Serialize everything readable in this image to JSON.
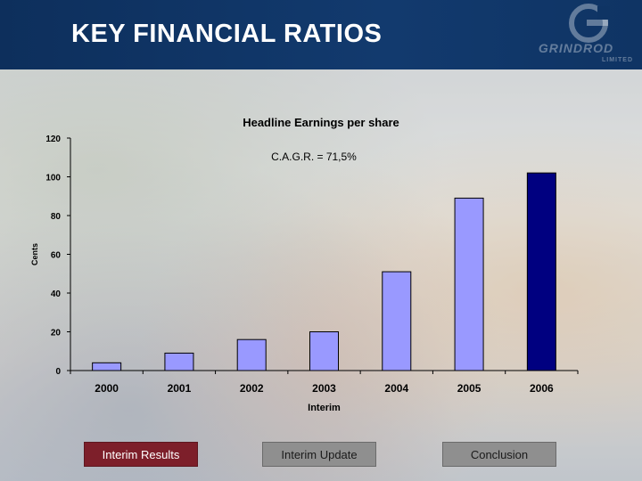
{
  "header": {
    "title": "KEY FINANCIAL RATIOS"
  },
  "logo": {
    "name": "GRINDROD",
    "sub": "LIMITED"
  },
  "chart_data": {
    "type": "bar",
    "title": "Headline Earnings per share",
    "annotation": "C.A.G.R.  = 71,5%",
    "ylabel": "Cents",
    "xlabel": "",
    "categories": [
      "2000",
      "2001",
      "2002",
      "2003",
      "2004",
      "2005",
      "2006"
    ],
    "category_sublabels": [
      "",
      "",
      "",
      "Interim",
      "",
      "",
      ""
    ],
    "values": [
      4,
      9,
      16,
      20,
      51,
      89,
      102
    ],
    "bar_colors": [
      "#9999ff",
      "#9999ff",
      "#9999ff",
      "#9999ff",
      "#9999ff",
      "#9999ff",
      "#000080"
    ],
    "ylim": [
      0,
      120
    ],
    "yticks": [
      0,
      20,
      40,
      60,
      80,
      100,
      120
    ],
    "grid": false,
    "legend": "none"
  },
  "nav": {
    "interim_results": "Interim Results",
    "interim_update": "Interim Update",
    "conclusion": "Conclusion"
  },
  "colors": {
    "header": "#0d2f5c",
    "bar": "#9999ff",
    "bar_highlight": "#000080",
    "nav_active": "#7d1f2a",
    "nav_inactive": "#8f8f8f"
  }
}
